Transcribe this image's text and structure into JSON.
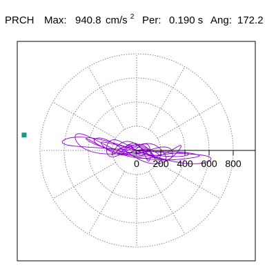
{
  "chart_data": {
    "type": "polar-trace",
    "header": {
      "station": "PRCH",
      "max_label": "Max:",
      "max_value": "940.8",
      "max_unit": "cm/s",
      "max_unit_exp": "2",
      "per_label": "Per:",
      "per_value": "0.190 s",
      "ang_label": "Ang:",
      "ang_value": "172.2"
    },
    "radial_axis": {
      "ticks": [
        0,
        200,
        400,
        600,
        800
      ],
      "tick_labels": [
        "0",
        "200",
        "400",
        "600",
        "800"
      ],
      "rmax": 800,
      "grid_rings": [
        200,
        400,
        600,
        800
      ],
      "spokes_deg": 30,
      "grid": true
    },
    "peak": {
      "value": 940.8,
      "angle_deg": 172.2
    },
    "trace": {
      "color": "#8a00cc",
      "principal_angle_deg": 172.2,
      "loops": [
        {
          "a": 620,
          "b": 40,
          "phase": 0.0
        },
        {
          "a": 520,
          "b": 55,
          "phase": 0.7
        },
        {
          "a": 430,
          "b": 35,
          "phase": 1.4
        },
        {
          "a": 360,
          "b": 70,
          "phase": 2.1
        },
        {
          "a": 300,
          "b": 45,
          "phase": 2.8
        },
        {
          "a": 250,
          "b": 60,
          "phase": 3.5
        },
        {
          "a": 200,
          "b": 50,
          "phase": 4.2
        },
        {
          "a": 160,
          "b": 40,
          "phase": 4.9
        },
        {
          "a": 120,
          "b": 55,
          "phase": 5.6
        },
        {
          "a": 90,
          "b": 30,
          "phase": 0.3
        }
      ]
    },
    "marker": {
      "color": "#1a9a80"
    },
    "colors": {
      "grid": "#666666",
      "axis": "#000000",
      "frame": "#000000"
    }
  }
}
